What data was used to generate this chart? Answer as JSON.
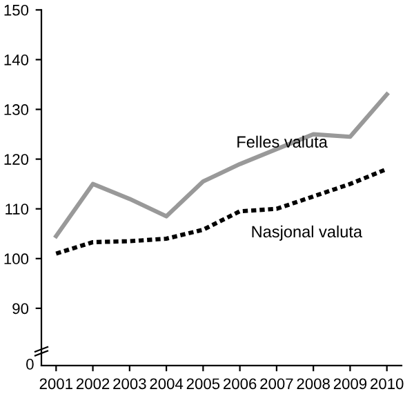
{
  "chart_data": {
    "type": "line",
    "categories": [
      "2001",
      "2002",
      "2003",
      "2004",
      "2005",
      "2006",
      "2007",
      "2008",
      "2009",
      "2010"
    ],
    "series": [
      {
        "name": "Felles valuta",
        "color": "#999999",
        "line_style": "solid",
        "values": [
          104.5,
          115,
          112,
          108.5,
          115.5,
          119,
          122,
          125,
          124.5,
          133
        ]
      },
      {
        "name": "Nasjonal valuta",
        "color": "#000000",
        "line_style": "dotted",
        "values": [
          101,
          103.3,
          103.5,
          104,
          105.8,
          109.5,
          110,
          112.5,
          115,
          118
        ]
      }
    ],
    "ylim": [
      78.5,
      150
    ],
    "yticks": [
      90,
      100,
      110,
      120,
      130,
      140,
      150
    ],
    "annotations": [
      "0"
    ],
    "grid": false,
    "legend": false
  }
}
